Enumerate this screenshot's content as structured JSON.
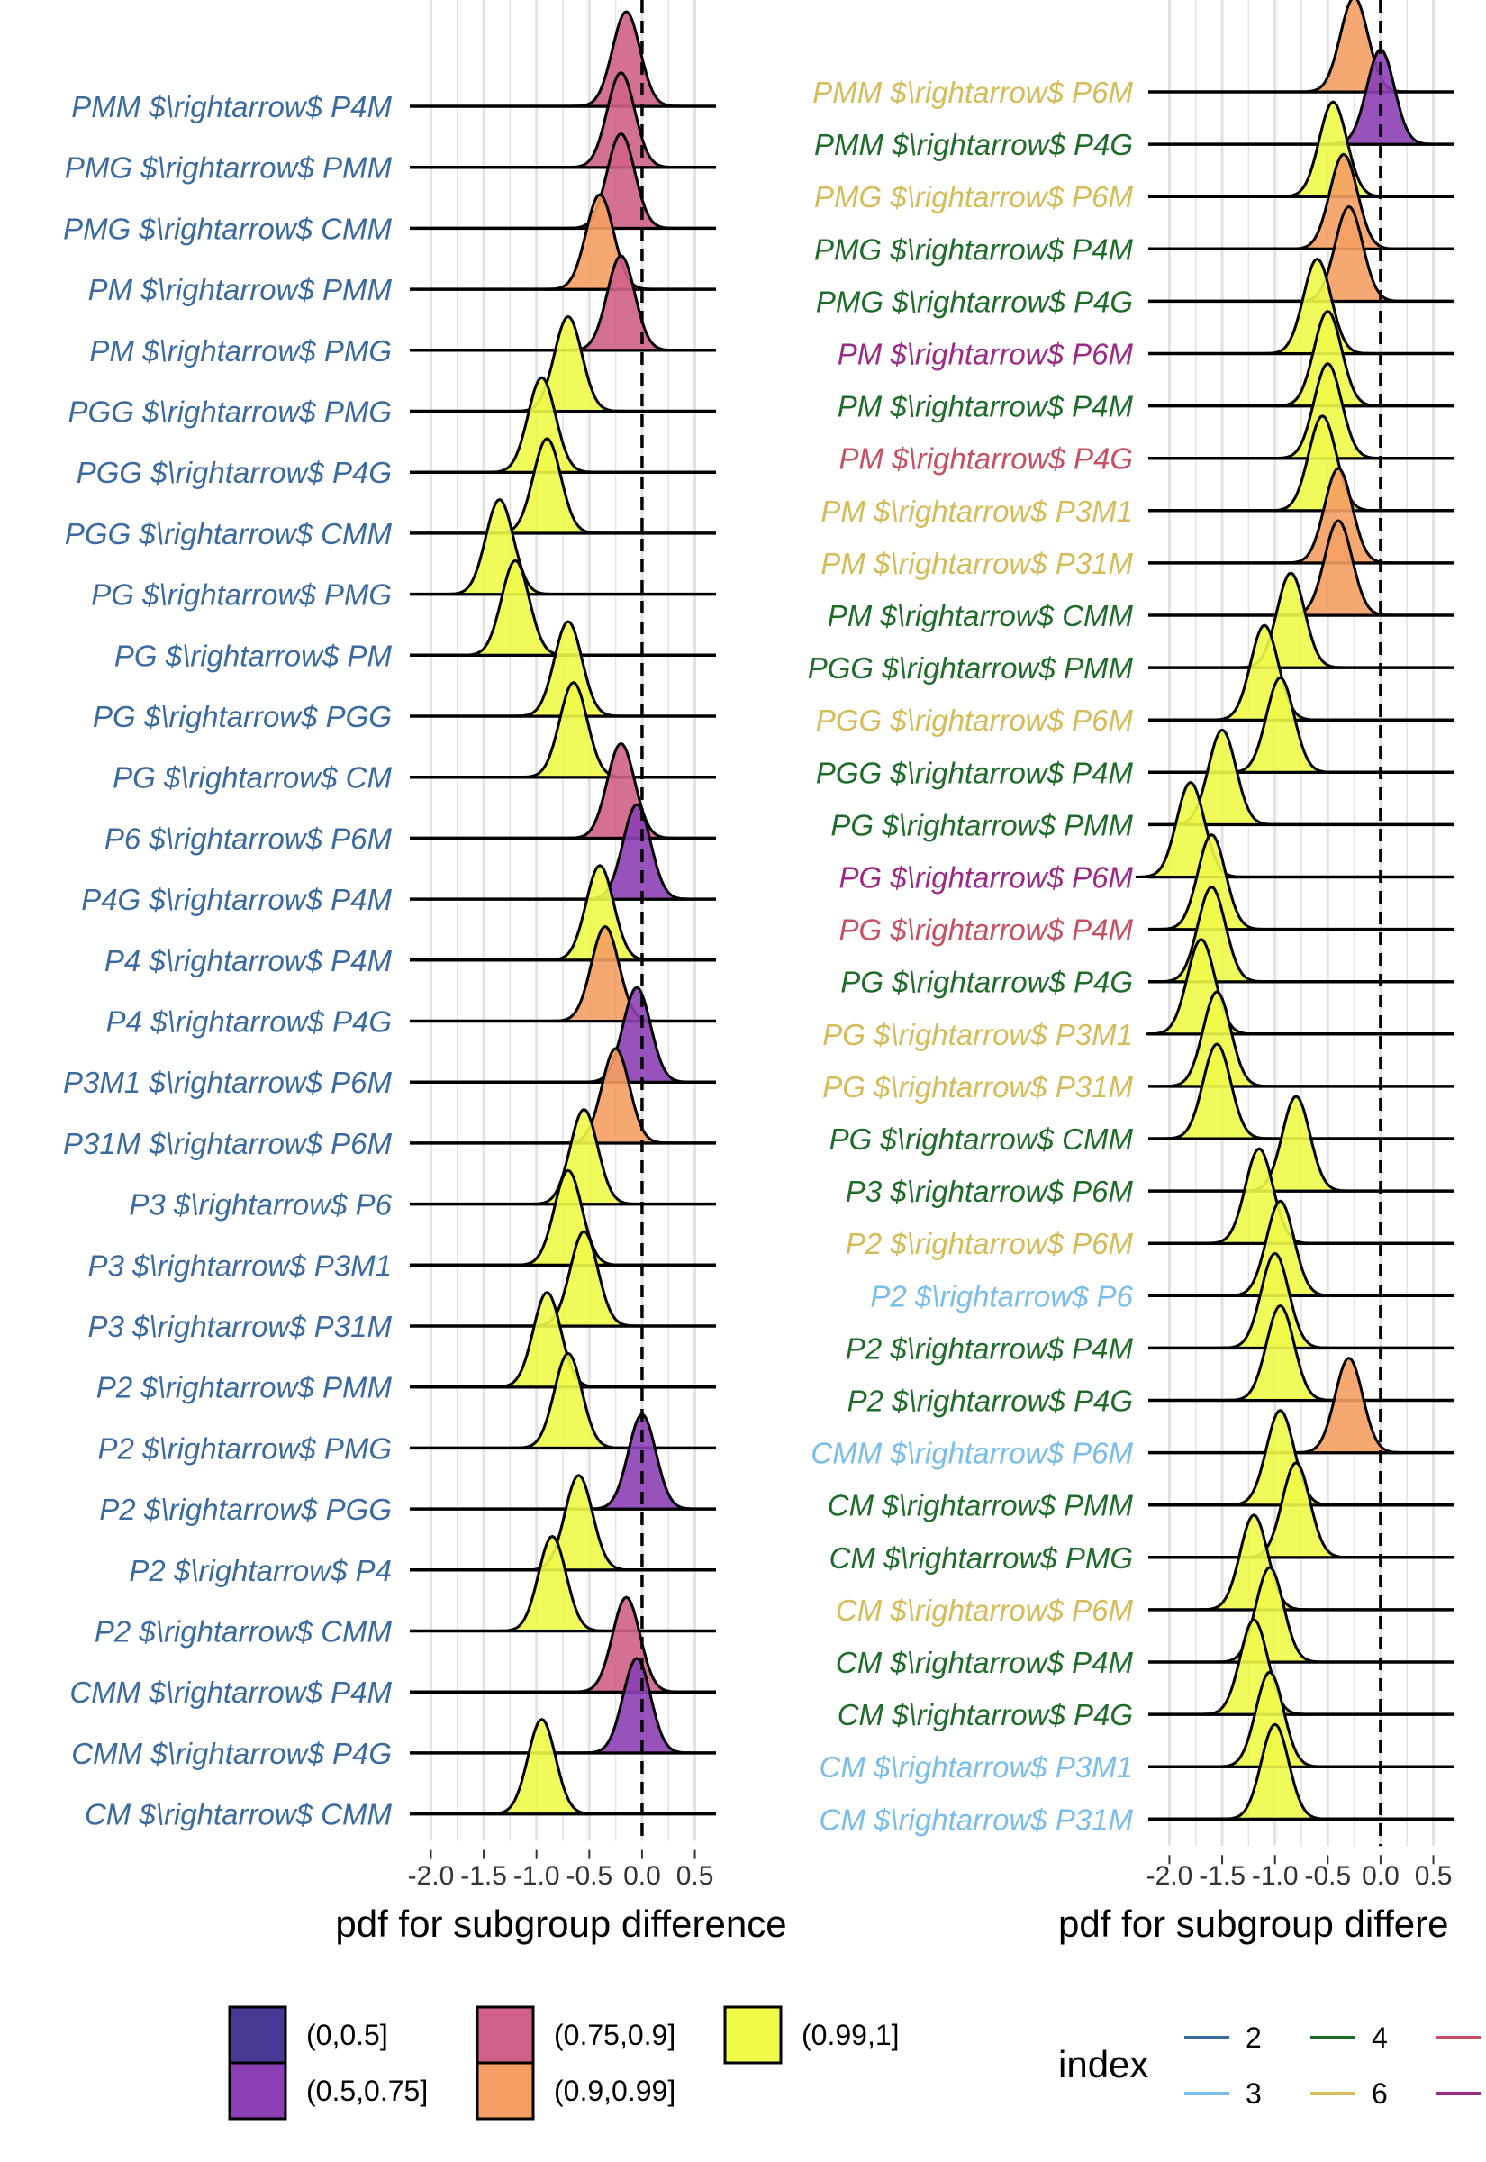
{
  "chart_data": [
    {
      "type": "ridgeline",
      "xlabel": "pdf for subgroup difference",
      "xticks": [
        "-2.0",
        "-1.5",
        "-1.0",
        "-0.5",
        "0.0",
        "0.5"
      ],
      "xlim": [
        -2.2,
        0.7
      ],
      "reference_line_x": 0,
      "rows": [
        {
          "label": "PMM $\\rightarrow$ P4M",
          "index": 2,
          "mean": -0.15,
          "peak": "PMM $\\rightarrow$ P4M",
          "bin": "(0.75,0.9]"
        },
        {
          "label": "PMG $\\rightarrow$ PMM",
          "index": 2,
          "mean": -0.2,
          "bin": "(0.75,0.9]"
        },
        {
          "label": "PMG $\\rightarrow$ CMM",
          "index": 2,
          "mean": -0.2,
          "bin": "(0.75,0.9]"
        },
        {
          "label": "PM $\\rightarrow$ PMM",
          "index": 2,
          "mean": -0.4,
          "bin": "(0.9,0.99]"
        },
        {
          "label": "PM $\\rightarrow$ PMG",
          "index": 2,
          "mean": -0.2,
          "bin": "(0.75,0.9]"
        },
        {
          "label": "PGG $\\rightarrow$ PMG",
          "index": 2,
          "mean": -0.7,
          "bin": "(0.99,1]"
        },
        {
          "label": "PGG $\\rightarrow$ P4G",
          "index": 2,
          "mean": -0.95,
          "bin": "(0.99,1]"
        },
        {
          "label": "PGG $\\rightarrow$ CMM",
          "index": 2,
          "mean": -0.9,
          "bin": "(0.99,1]"
        },
        {
          "label": "PG $\\rightarrow$ PMG",
          "index": 2,
          "mean": -1.35,
          "bin": "(0.99,1]"
        },
        {
          "label": "PG $\\rightarrow$ PM",
          "index": 2,
          "mean": -1.2,
          "bin": "(0.99,1]"
        },
        {
          "label": "PG $\\rightarrow$ PGG",
          "index": 2,
          "mean": -0.7,
          "bin": "(0.99,1]"
        },
        {
          "label": "PG $\\rightarrow$ CM",
          "index": 2,
          "mean": -0.65,
          "bin": "(0.99,1]"
        },
        {
          "label": "P6 $\\rightarrow$ P6M",
          "index": 2,
          "mean": -0.2,
          "bin": "(0.75,0.9]"
        },
        {
          "label": "P4G $\\rightarrow$ P4M",
          "index": 2,
          "mean": -0.05,
          "bin": "(0.5,0.75]"
        },
        {
          "label": "P4 $\\rightarrow$ P4M",
          "index": 2,
          "mean": -0.4,
          "bin": "(0.99,1]"
        },
        {
          "label": "P4 $\\rightarrow$ P4G",
          "index": 2,
          "mean": -0.35,
          "bin": "(0.9,0.99]"
        },
        {
          "label": "P3M1 $\\rightarrow$ P6M",
          "index": 2,
          "mean": -0.05,
          "bin": "(0.5,0.75]"
        },
        {
          "label": "P31M $\\rightarrow$ P6M",
          "index": 2,
          "mean": -0.25,
          "bin": "(0.9,0.99]"
        },
        {
          "label": "P3 $\\rightarrow$ P6",
          "index": 2,
          "mean": -0.55,
          "bin": "(0.99,1]"
        },
        {
          "label": "P3 $\\rightarrow$ P3M1",
          "index": 2,
          "mean": -0.7,
          "bin": "(0.99,1]"
        },
        {
          "label": "P3 $\\rightarrow$ P31M",
          "index": 2,
          "mean": -0.55,
          "bin": "(0.99,1]"
        },
        {
          "label": "P2 $\\rightarrow$ PMM",
          "index": 2,
          "mean": -0.9,
          "bin": "(0.99,1]"
        },
        {
          "label": "P2 $\\rightarrow$ PMG",
          "index": 2,
          "mean": -0.7,
          "bin": "(0.99,1]"
        },
        {
          "label": "P2 $\\rightarrow$ PGG",
          "index": 2,
          "mean": 0.0,
          "bin": "(0.5,0.75]"
        },
        {
          "label": "P2 $\\rightarrow$ P4",
          "index": 2,
          "mean": -0.6,
          "bin": "(0.99,1]"
        },
        {
          "label": "P2 $\\rightarrow$ CMM",
          "index": 2,
          "mean": -0.85,
          "bin": "(0.99,1]"
        },
        {
          "label": "CMM $\\rightarrow$ P4M",
          "index": 2,
          "mean": -0.15,
          "bin": "(0.75,0.9]"
        },
        {
          "label": "CMM $\\rightarrow$ P4G",
          "index": 2,
          "mean": -0.05,
          "bin": "(0.5,0.75]"
        },
        {
          "label": "CM $\\rightarrow$ CMM",
          "index": 2,
          "mean": -0.95,
          "bin": "(0.99,1]"
        }
      ]
    },
    {
      "type": "ridgeline",
      "xlabel": "pdf for subgroup differe",
      "xticks": [
        "-2.0",
        "-1.5",
        "-1.0",
        "-0.5",
        "0.0",
        "0.5"
      ],
      "xlim": [
        -2.2,
        0.7
      ],
      "reference_line_x": 0,
      "rows": [
        {
          "label": "PMM $\\rightarrow$ P6M",
          "index": 6,
          "mean": -0.25,
          "bin": "(0.9,0.99]"
        },
        {
          "label": "PMM $\\rightarrow$ P4G",
          "index": 4,
          "mean": 0.0,
          "bin": "(0.5,0.75]"
        },
        {
          "label": "PMG $\\rightarrow$ P6M",
          "index": 6,
          "mean": -0.45,
          "bin": "(0.99,1]"
        },
        {
          "label": "PMG $\\rightarrow$ P4M",
          "index": 4,
          "mean": -0.35,
          "bin": "(0.9,0.99]"
        },
        {
          "label": "PMG $\\rightarrow$ P4G",
          "index": 4,
          "mean": -0.3,
          "bin": "(0.9,0.99]"
        },
        {
          "label": "PM $\\rightarrow$ P6M",
          "index": 8,
          "mean": -0.6,
          "bin": "(0.99,1]"
        },
        {
          "label": "PM $\\rightarrow$ P4M",
          "index": 4,
          "mean": -0.5,
          "bin": "(0.99,1]"
        },
        {
          "label": "PM $\\rightarrow$ P4G",
          "index": 5,
          "mean": -0.5,
          "bin": "(0.99,1]"
        },
        {
          "label": "PM $\\rightarrow$ P3M1",
          "index": 6,
          "mean": -0.55,
          "bin": "(0.99,1]"
        },
        {
          "label": "PM $\\rightarrow$ P31M",
          "index": 6,
          "mean": -0.4,
          "bin": "(0.9,0.99]"
        },
        {
          "label": "PM $\\rightarrow$ CMM",
          "index": 4,
          "mean": -0.4,
          "bin": "(0.9,0.99]"
        },
        {
          "label": "PGG $\\rightarrow$ PMM",
          "index": 4,
          "mean": -0.85,
          "bin": "(0.99,1]"
        },
        {
          "label": "PGG $\\rightarrow$ P6M",
          "index": 6,
          "mean": -1.1,
          "bin": "(0.99,1]"
        },
        {
          "label": "PGG $\\rightarrow$ P4M",
          "index": 4,
          "mean": -0.95,
          "bin": "(0.99,1]"
        },
        {
          "label": "PG $\\rightarrow$ PMM",
          "index": 4,
          "mean": -1.5,
          "bin": "(0.99,1]"
        },
        {
          "label": "PG $\\rightarrow$ P6M",
          "index": 8,
          "mean": -1.8,
          "bin": "(0.99,1]"
        },
        {
          "label": "PG $\\rightarrow$ P4M",
          "index": 5,
          "mean": -1.6,
          "bin": "(0.99,1]"
        },
        {
          "label": "PG $\\rightarrow$ P4G",
          "index": 4,
          "mean": -1.6,
          "bin": "(0.99,1]"
        },
        {
          "label": "PG $\\rightarrow$ P3M1",
          "index": 6,
          "mean": -1.7,
          "bin": "(0.99,1]"
        },
        {
          "label": "PG $\\rightarrow$ P31M",
          "index": 6,
          "mean": -1.55,
          "bin": "(0.99,1]"
        },
        {
          "label": "PG $\\rightarrow$ CMM",
          "index": 4,
          "mean": -1.55,
          "bin": "(0.99,1]"
        },
        {
          "label": "P3 $\\rightarrow$ P6M",
          "index": 4,
          "mean": -0.8,
          "bin": "(0.99,1]"
        },
        {
          "label": "P2 $\\rightarrow$ P6M",
          "index": 6,
          "mean": -1.15,
          "bin": "(0.99,1]"
        },
        {
          "label": "P2 $\\rightarrow$ P6",
          "index": 3,
          "mean": -0.95,
          "bin": "(0.99,1]"
        },
        {
          "label": "P2 $\\rightarrow$ P4M",
          "index": 4,
          "mean": -1.0,
          "bin": "(0.99,1]"
        },
        {
          "label": "P2 $\\rightarrow$ P4G",
          "index": 4,
          "mean": -0.95,
          "bin": "(0.99,1]"
        },
        {
          "label": "CMM $\\rightarrow$ P6M",
          "index": 3,
          "mean": -0.3,
          "bin": "(0.9,0.99]"
        },
        {
          "label": "CM $\\rightarrow$ PMM",
          "index": 4,
          "mean": -0.95,
          "bin": "(0.99,1]"
        },
        {
          "label": "CM $\\rightarrow$ PMG",
          "index": 4,
          "mean": -0.8,
          "bin": "(0.99,1]"
        },
        {
          "label": "CM $\\rightarrow$ P6M",
          "index": 6,
          "mean": -1.2,
          "bin": "(0.99,1]"
        },
        {
          "label": "CM $\\rightarrow$ P4M",
          "index": 4,
          "mean": -1.05,
          "bin": "(0.99,1]"
        },
        {
          "label": "CM $\\rightarrow$ P4G",
          "index": 4,
          "mean": -1.2,
          "bin": "(0.99,1]"
        },
        {
          "label": "CM $\\rightarrow$ P3M1",
          "index": 3,
          "mean": -1.05,
          "bin": "(0.99,1]"
        },
        {
          "label": "CM $\\rightarrow$ P31M",
          "index": 3,
          "mean": -1.0,
          "bin": "(0.99,1]"
        }
      ]
    }
  ],
  "fill_legend": {
    "items": [
      {
        "label": "(0,0.5]",
        "color": "#473a94"
      },
      {
        "label": "(0.5,0.75]",
        "color": "#8c3fb4"
      },
      {
        "label": "(0.75,0.9]",
        "color": "#d0608a"
      },
      {
        "label": "(0.9,0.99]",
        "color": "#f59e63"
      },
      {
        "label": "(0.99,1]",
        "color": "#f0fa49"
      }
    ]
  },
  "index_legend": {
    "title": "index",
    "items": [
      {
        "label": "2",
        "color": "#3a6a9e"
      },
      {
        "label": "4",
        "color": "#1f6b2a"
      },
      {
        "label": "3",
        "color": "#79bde8"
      },
      {
        "label": "6",
        "color": "#d4bc5a"
      },
      {
        "label": "",
        "color": "#c65063"
      },
      {
        "label": "",
        "color": "#9b2a85"
      }
    ]
  },
  "index_colors": {
    "2": "#3a6a9e",
    "3": "#79bde8",
    "4": "#1f6b2a",
    "5": "#c65063",
    "6": "#d4bc5a",
    "8": "#9b2a85"
  }
}
